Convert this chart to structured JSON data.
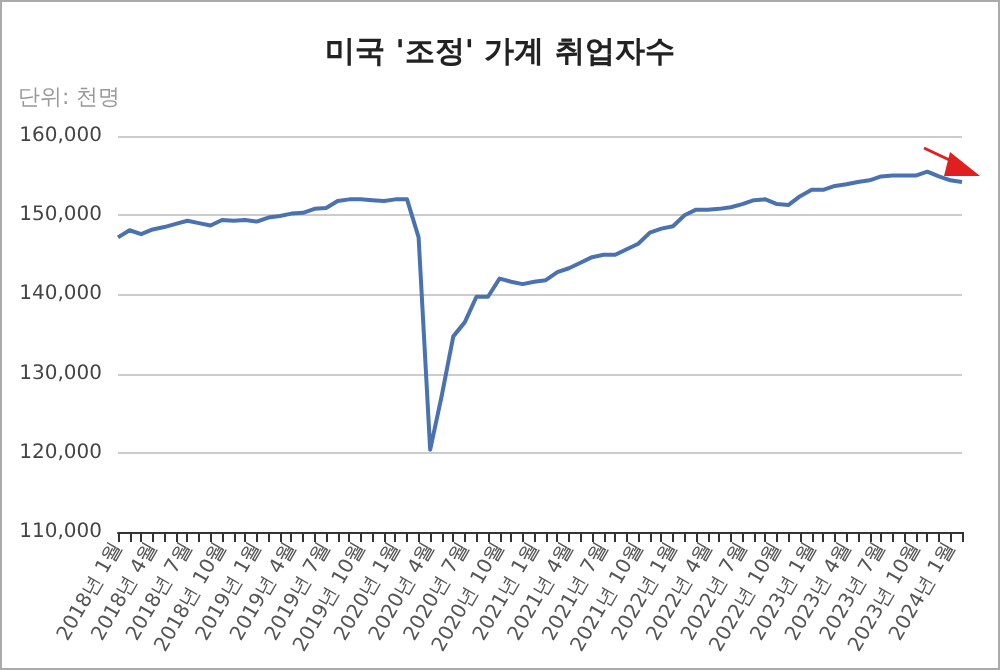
{
  "chart_data": {
    "type": "line",
    "title": "미국 '조정' 가계 취업자수",
    "ylabel": "단위: 천명",
    "categories": [
      "2018년 1월",
      null,
      null,
      "2018년 4월",
      null,
      null,
      "2018년 7월",
      null,
      null,
      "2018년 10월",
      null,
      null,
      "2019년 1월",
      null,
      null,
      "2019년 4월",
      null,
      null,
      "2019년 7월",
      null,
      null,
      "2019년 10월",
      null,
      null,
      "2020년 1월",
      null,
      null,
      "2020년 4월",
      null,
      null,
      "2020년 7월",
      null,
      null,
      "2020년 10월",
      null,
      null,
      "2021년 1월",
      null,
      null,
      "2021년 4월",
      null,
      null,
      "2021년 7월",
      null,
      null,
      "2021년 10월",
      null,
      null,
      "2022년 1월",
      null,
      null,
      "2022년 4월",
      null,
      null,
      "2022년 7월",
      null,
      null,
      "2022년 10월",
      null,
      null,
      "2023년 1월",
      null,
      null,
      "2023년 4월",
      null,
      null,
      "2023년 7월",
      null,
      null,
      "2023년 10월",
      null,
      null,
      "2024년 1월",
      null
    ],
    "series": [
      {
        "color": "#4a72b0",
        "values": [
          147200,
          148100,
          147600,
          148200,
          148500,
          148900,
          149300,
          149000,
          148700,
          149400,
          149300,
          149400,
          149200,
          149700,
          149900,
          150200,
          150300,
          150800,
          150900,
          151800,
          152000,
          152000,
          151900,
          151800,
          152000,
          152000,
          147200,
          120400,
          127200,
          134700,
          136500,
          139700,
          139700,
          142000,
          141600,
          141300,
          141600,
          141800,
          142800,
          143300,
          144000,
          144700,
          145000,
          145000,
          145700,
          146400,
          147800,
          148300,
          148600,
          150000,
          150700,
          150700,
          150800,
          151000,
          151400,
          151900,
          152000,
          151400,
          151300,
          152400,
          153200,
          153200,
          153700,
          153900,
          154200,
          154400,
          154900,
          155000,
          155000,
          155000,
          155500,
          154900,
          154400,
          154200
        ]
      }
    ],
    "ylim": [
      110000,
      160000
    ],
    "yticks": [
      {
        "value": 110000,
        "label": "110,000"
      },
      {
        "value": 120000,
        "label": "120,000"
      },
      {
        "value": 130000,
        "label": "130,000"
      },
      {
        "value": 140000,
        "label": "140,000"
      },
      {
        "value": 150000,
        "label": "150,000"
      },
      {
        "value": 160000,
        "label": "160,000"
      }
    ],
    "grid": "y",
    "marker": "none",
    "line_style": "solid"
  }
}
